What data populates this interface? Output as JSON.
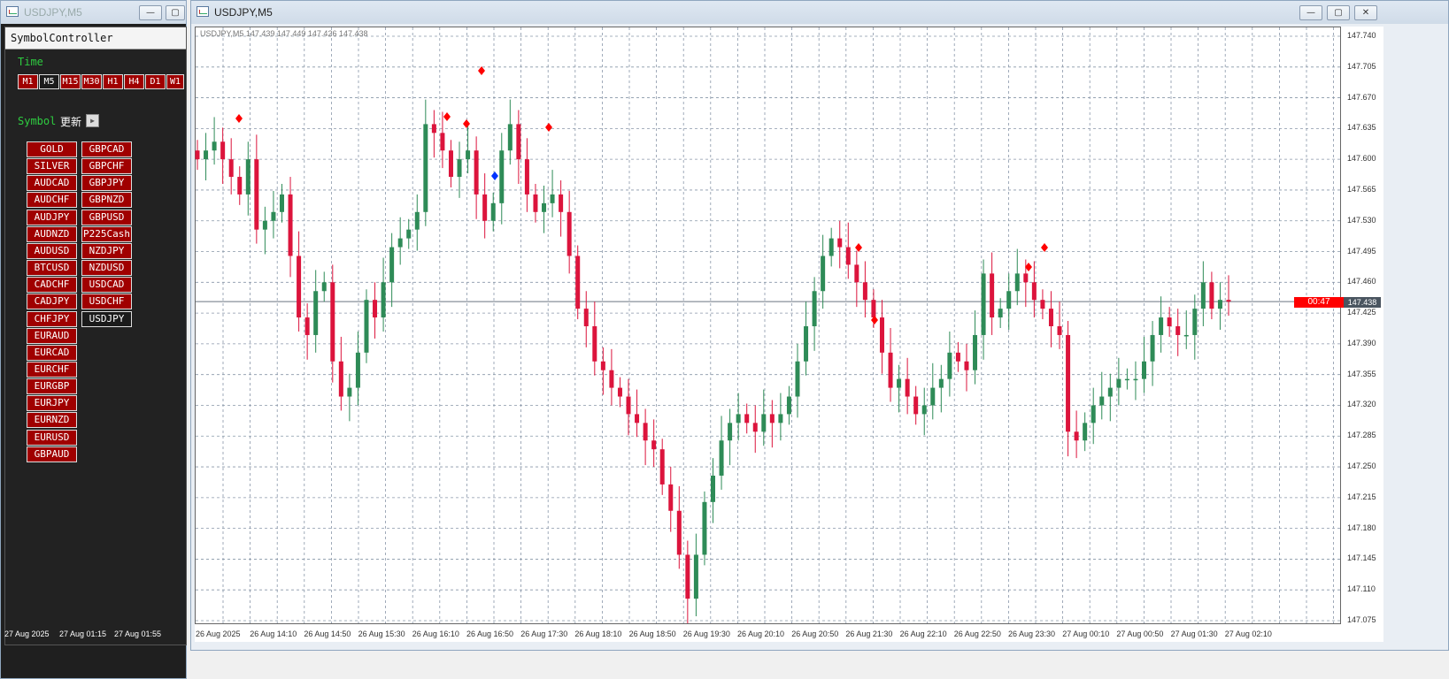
{
  "left_window": {
    "title": "USDJPY,M5",
    "min": "▭",
    "restore": "▫"
  },
  "main_window": {
    "title": "USDJPY,M5"
  },
  "controller": {
    "header": "SymbolController",
    "time_label": "Time",
    "symbol_label": "Symbol",
    "update_label": "更新",
    "timeframes": [
      "M1",
      "M5",
      "M15",
      "M30",
      "H1",
      "H4",
      "D1",
      "W1"
    ],
    "active_timeframe": "M5",
    "symbols_col1": [
      "GOLD",
      "SILVER",
      "AUDCAD",
      "AUDCHF",
      "AUDJPY",
      "AUDNZD",
      "AUDUSD",
      "BTCUSD",
      "CADCHF",
      "CADJPY",
      "CHFJPY",
      "EURAUD",
      "EURCAD",
      "EURCHF",
      "EURGBP",
      "EURJPY",
      "EURNZD",
      "EURUSD",
      "GBPAUD"
    ],
    "symbols_col2": [
      "GBPCAD",
      "GBPCHF",
      "GBPJPY",
      "GBPNZD",
      "GBPUSD",
      "P225Cash",
      "NZDJPY",
      "NZDUSD",
      "USDCAD",
      "USDCHF",
      "USDJPY"
    ],
    "active_symbol": "USDJPY",
    "bottom_dates": [
      "27 Aug 2025",
      "27 Aug 01:15",
      "27 Aug 01:55"
    ]
  },
  "chart": {
    "info_line": "USDJPY,M5  147.439 147.449 147.426 147.438",
    "current_price": "147.438",
    "countdown": "00:47",
    "bull_color": "#2e8b57",
    "bear_color": "#dc143c",
    "y_labels": [
      "147.740",
      "147.705",
      "147.670",
      "147.635",
      "147.600",
      "147.565",
      "147.530",
      "147.495",
      "147.460",
      "147.425",
      "147.390",
      "147.355",
      "147.320",
      "147.285",
      "147.250",
      "147.215",
      "147.180",
      "147.145",
      "147.110",
      "147.075"
    ],
    "x_labels": [
      "26 Aug 2025",
      "26 Aug 14:10",
      "26 Aug 14:50",
      "26 Aug 15:30",
      "26 Aug 16:10",
      "26 Aug 16:50",
      "26 Aug 17:30",
      "26 Aug 18:10",
      "26 Aug 18:50",
      "26 Aug 19:30",
      "26 Aug 20:10",
      "26 Aug 20:50",
      "26 Aug 21:30",
      "26 Aug 22:10",
      "26 Aug 22:50",
      "26 Aug 23:30",
      "27 Aug 00:10",
      "27 Aug 00:50",
      "27 Aug 01:30",
      "27 Aug 02:10"
    ]
  },
  "chart_data": {
    "type": "candlestick",
    "symbol": "USDJPY",
    "timeframe": "M5",
    "ylim": [
      147.06,
      147.75
    ],
    "close_series": [
      147.6,
      147.61,
      147.62,
      147.6,
      147.58,
      147.56,
      147.6,
      147.52,
      147.53,
      147.54,
      147.56,
      147.49,
      147.42,
      147.4,
      147.45,
      147.46,
      147.37,
      147.33,
      147.34,
      147.38,
      147.44,
      147.42,
      147.46,
      147.5,
      147.51,
      147.52,
      147.54,
      147.64,
      147.63,
      147.61,
      147.58,
      147.6,
      147.61,
      147.56,
      147.53,
      147.55,
      147.61,
      147.64,
      147.6,
      147.56,
      147.54,
      147.55,
      147.56,
      147.54,
      147.49,
      147.43,
      147.41,
      147.37,
      147.36,
      147.34,
      147.33,
      147.31,
      147.3,
      147.28,
      147.27,
      147.23,
      147.2,
      147.15,
      147.1,
      147.15,
      147.21,
      147.24,
      147.28,
      147.3,
      147.31,
      147.3,
      147.29,
      147.31,
      147.3,
      147.31,
      147.33,
      147.37,
      147.41,
      147.45,
      147.49,
      147.51,
      147.5,
      147.48,
      147.46,
      147.44,
      147.42,
      147.38,
      147.34,
      147.35,
      147.33,
      147.31,
      147.32,
      147.34,
      147.35,
      147.38,
      147.37,
      147.36,
      147.4,
      147.47,
      147.42,
      147.43,
      147.45,
      147.47,
      147.46,
      147.44,
      147.43,
      147.41,
      147.4,
      147.29,
      147.28,
      147.3,
      147.32,
      147.33,
      147.34,
      147.35,
      147.35,
      147.35,
      147.37,
      147.4,
      147.42,
      147.41,
      147.4,
      147.4,
      147.43,
      147.46,
      147.43,
      147.44,
      147.438
    ]
  }
}
